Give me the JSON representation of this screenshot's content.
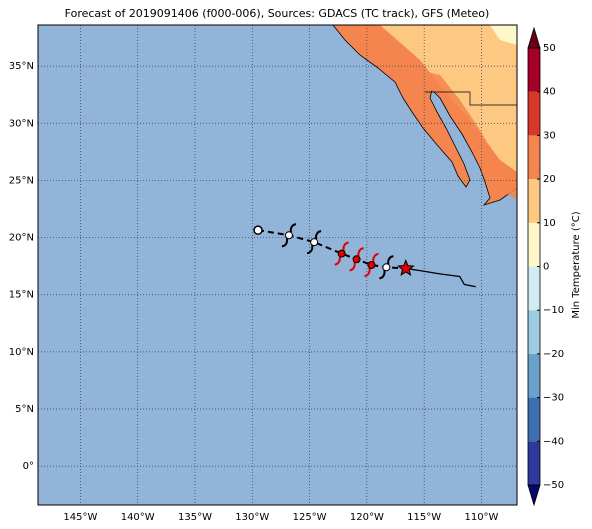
{
  "chart_data": {
    "type": "map",
    "title": "Forecast of 2019091406 (f000-006), Sources: GDACS (TC track), GFS (Meteo)",
    "xlim": [
      -148.7,
      -106.9
    ],
    "ylim": [
      -3.4,
      38.6
    ],
    "xticks": [
      {
        "value": -145,
        "label": "145°W"
      },
      {
        "value": -140,
        "label": "140°W"
      },
      {
        "value": -135,
        "label": "135°W"
      },
      {
        "value": -130,
        "label": "130°W"
      },
      {
        "value": -125,
        "label": "125°W"
      },
      {
        "value": -120,
        "label": "120°W"
      },
      {
        "value": -115,
        "label": "115°W"
      },
      {
        "value": -110,
        "label": "110°W"
      }
    ],
    "yticks": [
      {
        "value": 0,
        "label": "0°"
      },
      {
        "value": 5,
        "label": "5°N"
      },
      {
        "value": 10,
        "label": "10°N"
      },
      {
        "value": 15,
        "label": "15°N"
      },
      {
        "value": 20,
        "label": "20°N"
      },
      {
        "value": 25,
        "label": "25°N"
      },
      {
        "value": 30,
        "label": "30°N"
      },
      {
        "value": 35,
        "label": "35°N"
      }
    ],
    "grid": true,
    "ocean_color": "#92b4d8",
    "forecast_track": {
      "lon": [
        -129.5,
        -126.8,
        -124.6,
        -122.2,
        -120.9,
        -119.6,
        -118.3,
        -116.6
      ],
      "lat": [
        20.65,
        20.2,
        19.6,
        18.6,
        18.1,
        17.6,
        17.4,
        17.3
      ],
      "marker": [
        "circle",
        "cyclone",
        "cyclone",
        "cyclone",
        "cyclone",
        "cyclone",
        "cyclone",
        "star"
      ],
      "color": [
        "#ffffff",
        "#ffffff",
        "#ffffff",
        "#e00000",
        "#e00000",
        "#e00000",
        "#ffffff",
        "#e00000"
      ]
    },
    "observed_track": {
      "lon": [
        -116.6,
        -115.3,
        -113.5,
        -111.9,
        -111.5,
        -110.5
      ],
      "lat": [
        17.3,
        17.1,
        16.8,
        16.6,
        15.9,
        15.7
      ]
    },
    "colorbar": {
      "label": "Min Temperature (°C)",
      "lim": [
        -50,
        50
      ],
      "ticks": [
        {
          "value": -50,
          "label": "−50"
        },
        {
          "value": -40,
          "label": "−40"
        },
        {
          "value": -30,
          "label": "−30"
        },
        {
          "value": -20,
          "label": "−20"
        },
        {
          "value": -10,
          "label": "−10"
        },
        0,
        10,
        20,
        30,
        40,
        50
      ],
      "colors": [
        "#2d3a9a",
        "#3e6db0",
        "#6aa0c9",
        "#9dcbe0",
        "#d2ecf3",
        "#fdf7c9",
        "#fdc982",
        "#f4854e",
        "#d8382a",
        "#a50026"
      ],
      "under": "#08086b",
      "over": "#6d0019"
    }
  }
}
